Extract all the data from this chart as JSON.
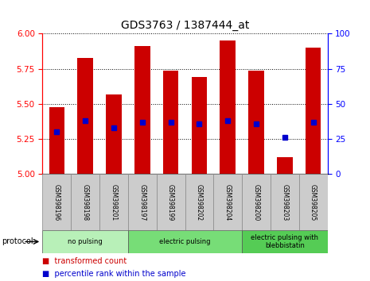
{
  "title": "GDS3763 / 1387444_at",
  "samples": [
    "GSM398196",
    "GSM398198",
    "GSM398201",
    "GSM398197",
    "GSM398199",
    "GSM398202",
    "GSM398204",
    "GSM398200",
    "GSM398203",
    "GSM398205"
  ],
  "red_values": [
    5.48,
    5.83,
    5.57,
    5.91,
    5.74,
    5.69,
    5.95,
    5.74,
    5.12,
    5.9
  ],
  "blue_values": [
    5.3,
    5.38,
    5.33,
    5.37,
    5.37,
    5.36,
    5.38,
    5.36,
    5.26,
    5.37
  ],
  "y_min": 5.0,
  "y_max": 6.0,
  "y_ticks": [
    5.0,
    5.25,
    5.5,
    5.75,
    6.0
  ],
  "right_y_ticks": [
    0,
    25,
    50,
    75,
    100
  ],
  "groups": [
    {
      "label": "no pulsing",
      "start": 0,
      "end": 3
    },
    {
      "label": "electric pulsing",
      "start": 3,
      "end": 7
    },
    {
      "label": "electric pulsing with\nblebbistatin",
      "start": 7,
      "end": 10
    }
  ],
  "group_colors": [
    "#b8f0b8",
    "#77dd77",
    "#55cc55"
  ],
  "bar_color": "#cc0000",
  "blue_color": "#0000cc",
  "bar_width": 0.55,
  "protocol_label": "protocol",
  "legend_red": "transformed count",
  "legend_blue": "percentile rank within the sample"
}
